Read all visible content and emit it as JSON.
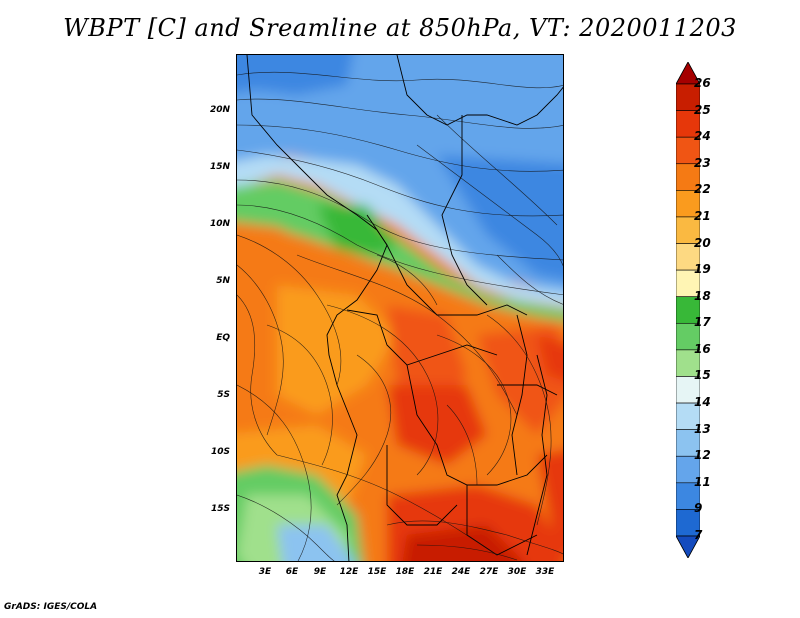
{
  "title": "WBPT [C] and Sreamline at 850hPa, VT: 2020011203",
  "footer": "GrADS: IGES/COLA",
  "lat_labels": [
    "20N",
    "15N",
    "10N",
    "5N",
    "EQ",
    "5S",
    "10S",
    "15S"
  ],
  "lon_labels": [
    "3E",
    "6E",
    "9E",
    "12E",
    "15E",
    "18E",
    "21E",
    "24E",
    "27E",
    "30E",
    "33E"
  ],
  "colorbar": {
    "labels": [
      "26",
      "25",
      "24",
      "23",
      "22",
      "21",
      "20",
      "19",
      "18",
      "17",
      "16",
      "15",
      "14",
      "13",
      "12",
      "11",
      "9",
      "7"
    ],
    "colors": [
      "#a50000",
      "#c81e00",
      "#e6370a",
      "#f05514",
      "#f57a14",
      "#fa9b1e",
      "#fab941",
      "#fdd982",
      "#fff5b4",
      "#38b838",
      "#64cc64",
      "#a0e08c",
      "#e6f5f5",
      "#b4dcf5",
      "#8cc3f0",
      "#64a5eb",
      "#3c87e1",
      "#1e69d2",
      "#144bbe"
    ]
  }
}
